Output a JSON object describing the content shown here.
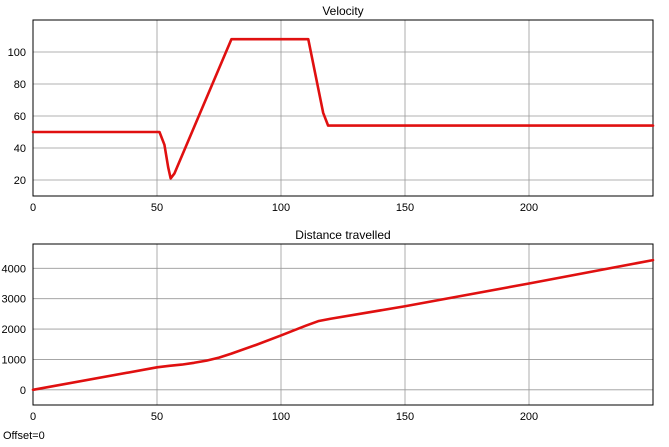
{
  "footer": {
    "offset_label": "Offset=0"
  },
  "colors": {
    "line": "#e01010",
    "grid": "#999999",
    "axes": "#000000",
    "background": "#ffffff"
  },
  "chart_data": [
    {
      "type": "line",
      "title": "Velocity",
      "xlabel": "",
      "ylabel": "",
      "xlim": [
        0,
        250
      ],
      "ylim": [
        10,
        120
      ],
      "xticks": [
        0,
        50,
        100,
        150,
        200
      ],
      "yticks": [
        20,
        40,
        60,
        80,
        100
      ],
      "grid": true,
      "series": [
        {
          "x": [
            0,
            50,
            51,
            53,
            54.5,
            55.5,
            57,
            80,
            111,
            117,
            119,
            250
          ],
          "y": [
            50,
            50,
            50,
            42,
            28,
            21,
            24,
            108,
            108,
            62,
            54,
            54
          ]
        }
      ]
    },
    {
      "type": "line",
      "title": "Distance travelled",
      "xlabel": "",
      "ylabel": "",
      "xlim": [
        0,
        250
      ],
      "ylim": [
        -500,
        4800
      ],
      "xticks": [
        0,
        50,
        100,
        150,
        200
      ],
      "yticks": [
        0,
        1000,
        2000,
        3000,
        4000
      ],
      "grid": true,
      "series": [
        {
          "x": [
            0,
            50,
            55,
            60,
            65,
            70,
            75,
            80,
            90,
            100,
            110,
            115,
            120,
            150,
            200,
            250
          ],
          "y": [
            0,
            740,
            790,
            830,
            890,
            960,
            1060,
            1190,
            1480,
            1790,
            2110,
            2260,
            2340,
            2750,
            3500,
            4270
          ]
        }
      ]
    }
  ]
}
